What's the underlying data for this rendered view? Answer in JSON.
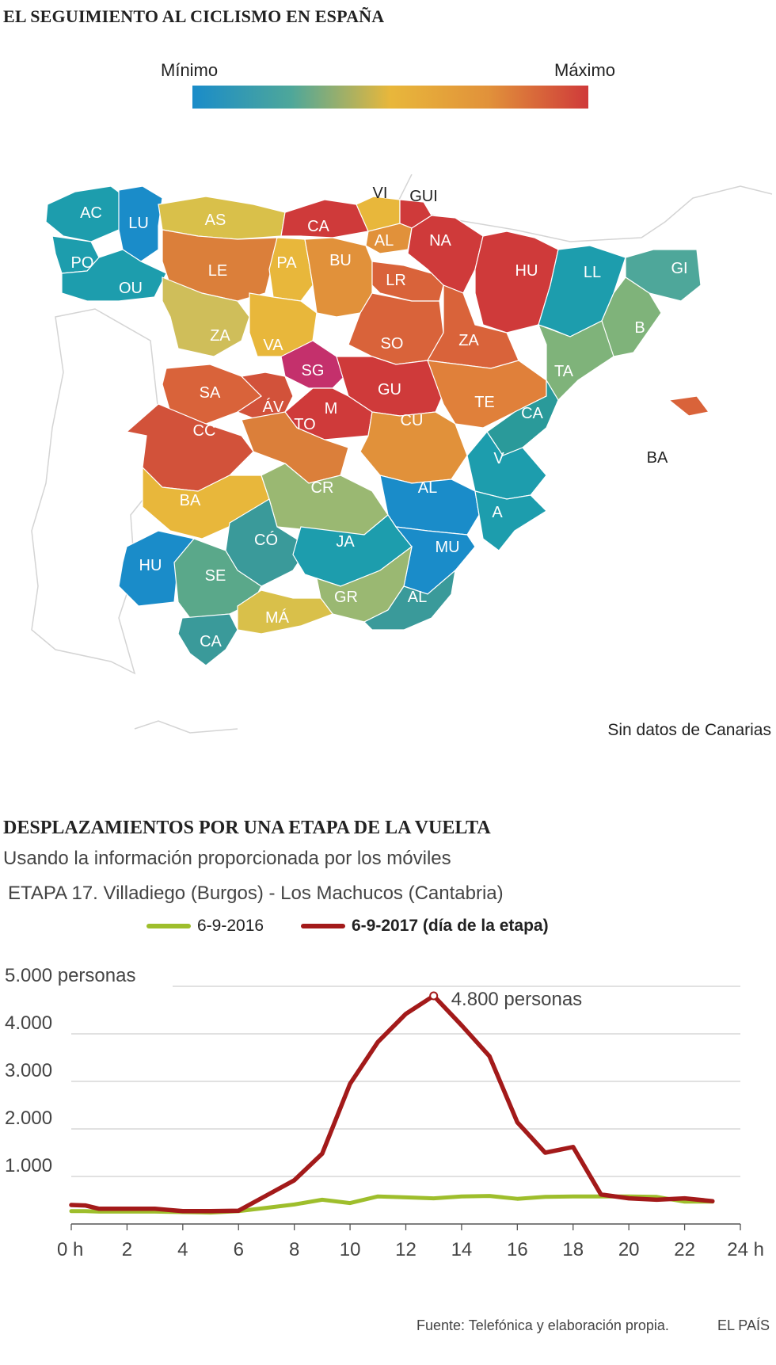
{
  "map": {
    "title": "EL SEGUIMIENTO AL CICLISMO EN ESPAÑA",
    "legend": {
      "min_label": "Mínimo",
      "max_label": "Máximo",
      "gradient": [
        "#1a8cc9",
        "#4ea79a",
        "#e8b73b",
        "#e1913a",
        "#cf3a3a"
      ]
    },
    "no_data_note": "Sin datos de Canarias",
    "regions": [
      {
        "label": "AC",
        "color": "#1d9dad"
      },
      {
        "label": "LU",
        "color": "#1a8cc9"
      },
      {
        "label": "PO",
        "color": "#1d9dad"
      },
      {
        "label": "OU",
        "color": "#1d9dad"
      },
      {
        "label": "AS",
        "color": "#d9c04a"
      },
      {
        "label": "CA",
        "color": "#cf3a3a"
      },
      {
        "label": "VI",
        "color": "#e8b73b"
      },
      {
        "label": "GUI",
        "color": "#cf3a3a"
      },
      {
        "label": "AL",
        "color": "#e1913a"
      },
      {
        "label": "LE",
        "color": "#db7f3a"
      },
      {
        "label": "PA",
        "color": "#e8b73b"
      },
      {
        "label": "BU",
        "color": "#e1913a"
      },
      {
        "label": "NA",
        "color": "#cf3a3a"
      },
      {
        "label": "HU",
        "color": "#cf3a3a"
      },
      {
        "label": "LL",
        "color": "#1d9dad"
      },
      {
        "label": "GI",
        "color": "#4ea79a"
      },
      {
        "label": "LR",
        "color": "#d9633a"
      },
      {
        "label": "ZA",
        "color": "#cfbe5a"
      },
      {
        "label": "VA",
        "color": "#e8b73b"
      },
      {
        "label": "SO",
        "color": "#d9633a"
      },
      {
        "label": "ZA",
        "color": "#d9633a"
      },
      {
        "label": "B",
        "color": "#7fb37a"
      },
      {
        "label": "SG",
        "color": "#c4306c"
      },
      {
        "label": "TA",
        "color": "#7fb37a"
      },
      {
        "label": "SA",
        "color": "#d9633a"
      },
      {
        "label": "ÁV",
        "color": "#d2523a"
      },
      {
        "label": "GU",
        "color": "#cf3a3a"
      },
      {
        "label": "TE",
        "color": "#e0803a"
      },
      {
        "label": "M",
        "color": "#cf3a3a"
      },
      {
        "label": "CA",
        "color": "#2a9a9a"
      },
      {
        "label": "CC",
        "color": "#d2523a"
      },
      {
        "label": "TO",
        "color": "#db7f3a"
      },
      {
        "label": "CU",
        "color": "#e1913a"
      },
      {
        "label": "BA",
        "color": "#d9633a"
      },
      {
        "label": "V",
        "color": "#1d9dad"
      },
      {
        "label": "BA",
        "color": "#e8b73b"
      },
      {
        "label": "CR",
        "color": "#9ab872"
      },
      {
        "label": "AL",
        "color": "#1a8cc9"
      },
      {
        "label": "A",
        "color": "#1d9dad"
      },
      {
        "label": "CÓ",
        "color": "#3a9a9a"
      },
      {
        "label": "JA",
        "color": "#1d9dad"
      },
      {
        "label": "MU",
        "color": "#1a8cc9"
      },
      {
        "label": "HU",
        "color": "#1a8cc9"
      },
      {
        "label": "SE",
        "color": "#5aa88a"
      },
      {
        "label": "GR",
        "color": "#9ab872"
      },
      {
        "label": "AL",
        "color": "#3a9a9a"
      },
      {
        "label": "MÁ",
        "color": "#d9c04a"
      },
      {
        "label": "CA",
        "color": "#3a9a9a"
      }
    ]
  },
  "chart": {
    "title": "DESPLAZAMIENTOS POR UNA ETAPA DE LA VUELTA",
    "subtitle": "Usando la información proporcionada por los móviles",
    "stage": "ETAPA 17. Villadiego (Burgos) - Los Machucos (Cantabria)",
    "annotation": "4.800 personas"
  },
  "chart_data": {
    "type": "line",
    "x": [
      0,
      0.5,
      1,
      2,
      3,
      4,
      5,
      6,
      7,
      8,
      9,
      10,
      11,
      12,
      13,
      14,
      15,
      16,
      17,
      18,
      19,
      20,
      21,
      22,
      23
    ],
    "xlim": [
      0,
      24
    ],
    "ylim": [
      0,
      5000
    ],
    "x_ticks": [
      "0 h",
      "2",
      "4",
      "6",
      "8",
      "10",
      "12",
      "14",
      "16",
      "18",
      "20",
      "22",
      "24 h"
    ],
    "y_ticks": [
      "1.000",
      "2.000",
      "3.000",
      "4.000",
      "5.000 personas"
    ],
    "y_tick_values": [
      1000,
      2000,
      3000,
      4000,
      5000
    ],
    "x_tick_values": [
      0,
      2,
      4,
      6,
      8,
      10,
      12,
      14,
      16,
      18,
      20,
      22,
      24
    ],
    "grid": true,
    "series": [
      {
        "name": "6-9-2016",
        "color": "#9ebe2c",
        "values": [
          270,
          270,
          260,
          260,
          260,
          250,
          240,
          270,
          340,
          410,
          510,
          440,
          580,
          560,
          540,
          580,
          590,
          530,
          570,
          580,
          580,
          580,
          570,
          470,
          470
        ]
      },
      {
        "name": "6-9-2017 (día de la etapa)",
        "color": "#a31a1a",
        "values": [
          400,
          390,
          320,
          320,
          320,
          270,
          270,
          280,
          600,
          920,
          1480,
          2950,
          3830,
          4420,
          4800,
          4180,
          3530,
          2140,
          1500,
          1620,
          620,
          540,
          510,
          540,
          480
        ]
      }
    ],
    "peak": {
      "x": 13,
      "y": 4800
    }
  },
  "footer": {
    "source": "Fuente: Telefónica y elaboración propia.",
    "brand": "EL PAÍS"
  }
}
